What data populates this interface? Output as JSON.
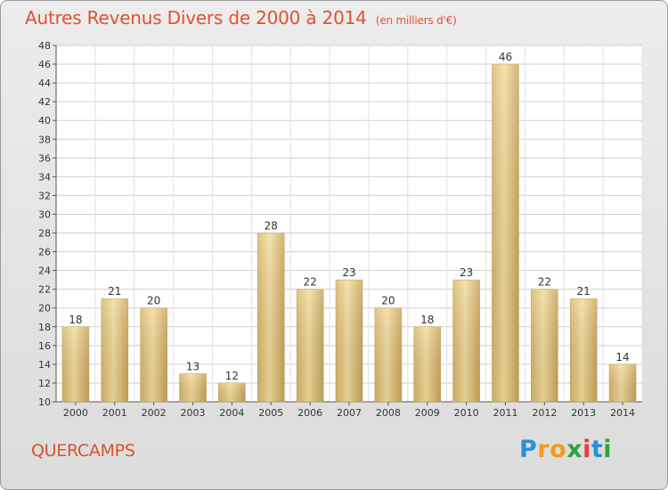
{
  "chart_data": {
    "type": "bar",
    "title": "Autres Revenus Divers de 2000 à 2014",
    "subtitle": "(en milliers d'€)",
    "categories": [
      "2000",
      "2001",
      "2002",
      "2003",
      "2004",
      "2005",
      "2006",
      "2007",
      "2008",
      "2009",
      "2010",
      "2011",
      "2012",
      "2013",
      "2014"
    ],
    "values": [
      18,
      21,
      20,
      13,
      12,
      28,
      22,
      23,
      20,
      18,
      23,
      46,
      22,
      21,
      14
    ],
    "ylim": [
      10,
      48
    ],
    "yticks": [
      10,
      12,
      14,
      16,
      18,
      20,
      22,
      24,
      26,
      28,
      30,
      32,
      34,
      36,
      38,
      40,
      42,
      44,
      46,
      48
    ],
    "grid": true,
    "bar_color": "#e8cc86"
  },
  "commune": "QUERCAMPS",
  "logo": {
    "text": "Proxiti"
  },
  "colors": {
    "title": "#e0522e",
    "commune": "#d9542b"
  }
}
